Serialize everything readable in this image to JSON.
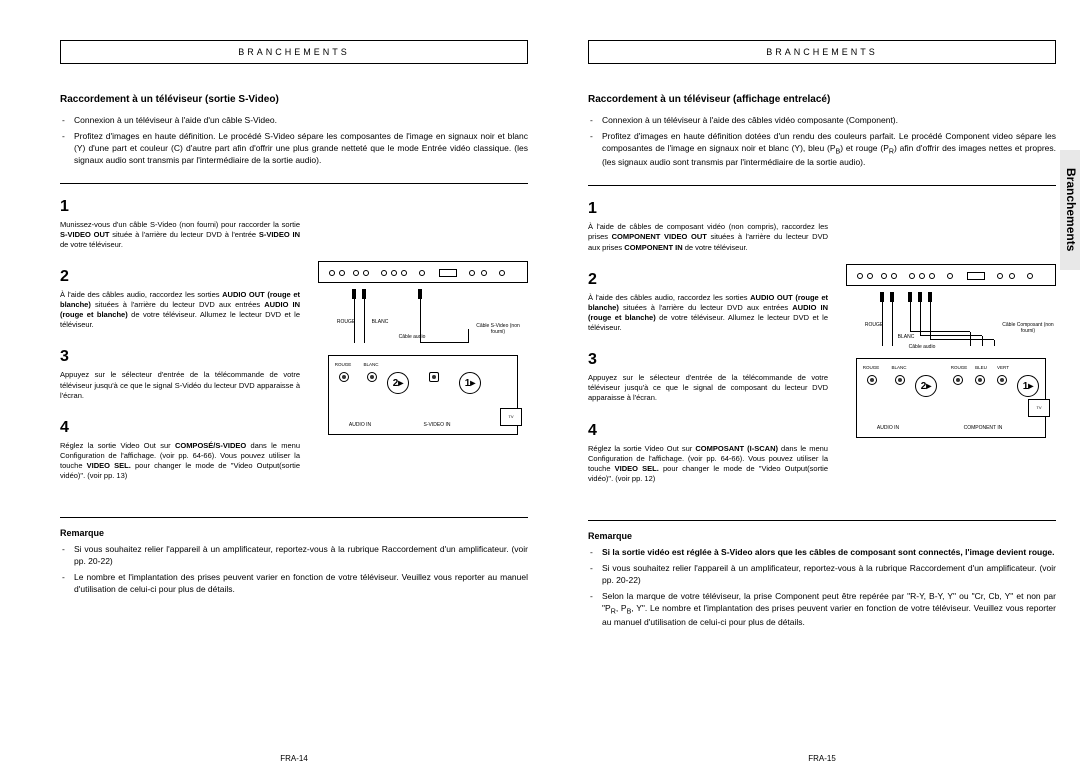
{
  "sideTab": "Branchements",
  "left": {
    "header": "BRANCHEMENTS",
    "title": "Raccordement à un téléviseur (sortie S-Video)",
    "intro": [
      "Connexion à un téléviseur à l'aide d'un câble S-Video.",
      "Profitez d'images en haute définition. Le procédé S-Video sépare les composantes de l'image en signaux noir et blanc (Y) d'une part et couleur (C) d'autre part afin d'offrir une plus grande netteté que le mode Entrée vidéo classique. (les signaux audio sont transmis par l'intermédiaire de la sortie audio)."
    ],
    "steps": [
      "Munissez-vous d'un câble S-Video (non fourni) pour raccorder la sortie <b>S-VIDEO OUT</b> située à l'arrière du lecteur DVD à l'entrée <b>S-VIDEO IN</b> de votre téléviseur.",
      "À l'aide des câbles audio, raccordez les sorties <b>AUDIO OUT (rouge et blanche)</b> situées à l'arrière du lecteur DVD aux entrées <b>AUDIO IN (rouge et blanche)</b> de votre téléviseur. Allumez le lecteur DVD et le téléviseur.",
      "Appuyez sur le sélecteur d'entrée de la télécommande de votre téléviseur jusqu'à ce que le signal S-Vidéo du lecteur DVD apparaisse à l'écran.",
      "Réglez la sortie Video Out sur <b>COMPOSÉ/S-VIDEO</b> dans le menu Configuration de l'affichage. (voir pp. 64-66). Vous pouvez utiliser la touche <b>VIDEO SEL.</b> pour changer le mode de \"Video Output(sortie vidéo)\". (voir pp. 13)"
    ],
    "remarkTitle": "Remarque",
    "remarks": [
      "Si vous souhaitez relier l'appareil à un amplificateur, reportez-vous à la rubrique Raccordement d'un amplificateur. (voir pp. 20-22)",
      "Le nombre et l'implantation des prises peuvent varier en fonction de votre téléviseur. Veuillez vous reporter au manuel d'utilisation de celui-ci pour plus de détails."
    ],
    "footer": "FRA-14",
    "tv": {
      "audioIn": "AUDIO IN",
      "svideoIn": "S-VIDEO IN",
      "rouge": "ROUGE",
      "blanc": "BLANC",
      "cableAudio": "Câble audio",
      "cableSvideo": "Câble S-Video (non fourni)",
      "tv": "TV"
    }
  },
  "right": {
    "header": "BRANCHEMENTS",
    "title": "Raccordement à un téléviseur (affichage entrelacé)",
    "intro": [
      "Connexion à un téléviseur à l'aide des câbles vidéo composante (Component).",
      "Profitez d'images en haute définition dotées d'un rendu des couleurs parfait. Le procédé Component video sépare les composantes de l'image en signaux noir et blanc (Y), bleu (P<sub>B</sub>) et rouge (P<sub>R</sub>) afin d'offrir des images nettes et propres. (les signaux audio sont transmis par l'intermédiaire de la sortie audio)."
    ],
    "steps": [
      "À l'aide de câbles de composant vidéo (non compris), raccordez les prises <b>COMPONENT VIDEO OUT</b> situées à l'arrière du lecteur DVD aux prises <b>COMPONENT IN</b> de votre téléviseur.",
      "À l'aide des câbles audio, raccordez les sorties <b>AUDIO OUT (rouge et blanche)</b> situées à l'arrière du lecteur DVD aux entrées <b>AUDIO IN (rouge et blanche)</b> de votre téléviseur. Allumez le lecteur DVD et le téléviseur.",
      "Appuyez sur le sélecteur d'entrée de la télécommande de votre téléviseur jusqu'à ce que le signal de composant du lecteur DVD apparaisse à l'écran.",
      "Réglez la sortie Video Out sur <b>COMPOSANT (I-SCAN)</b> dans le menu Configuration de l'affichage. (voir pp. 64-66). Vous pouvez utiliser la touche <b>VIDEO SEL.</b> pour changer le mode de \"Video Output(sortie vidéo)\". (voir pp. 12)"
    ],
    "remarkTitle": "Remarque",
    "remarks": [
      "<b>Si la sortie vidéo est réglée à S-Video alors que les câbles de composant sont connectés, l'image devient rouge.</b>",
      "Si vous souhaitez relier l'appareil à un amplificateur, reportez-vous à la rubrique Raccordement d'un amplificateur. (voir pp. 20-22)",
      "Selon la marque de votre téléviseur, la prise Component peut être repérée par \"R-Y, B-Y, Y\" ou \"Cr, Cb, Y\" et non par \"P<sub>R</sub>, P<sub>B</sub>, Y\". Le nombre et l'implantation des prises peuvent varier en fonction de votre téléviseur. Veuillez vous reporter au manuel d'utilisation de celui-ci pour plus de détails."
    ],
    "footer": "FRA-15",
    "tv": {
      "audioIn": "AUDIO IN",
      "componentIn": "COMPONENT IN",
      "rouge": "ROUGE",
      "blanc": "BLANC",
      "bleu": "BLEU",
      "vert": "VERT",
      "cableAudio": "Câble audio",
      "cableComponent": "Câble Composant (non fourni)",
      "tv": "TV"
    }
  }
}
